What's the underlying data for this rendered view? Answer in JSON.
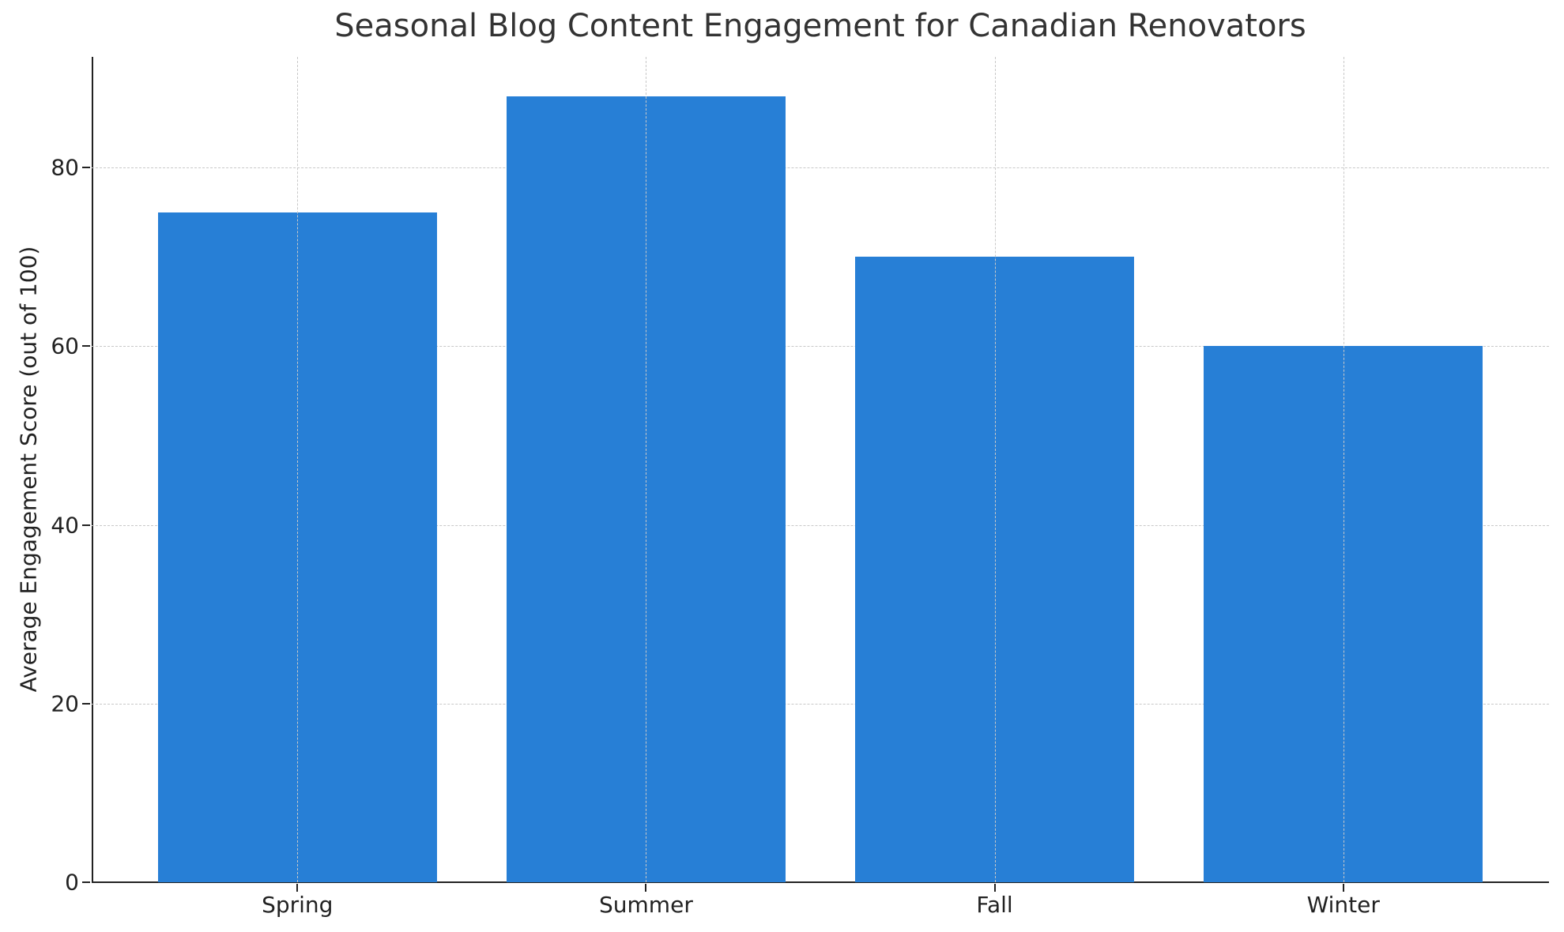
{
  "chart_data": {
    "type": "bar",
    "title": "Seasonal Blog Content Engagement for Canadian Renovators",
    "xlabel": "",
    "ylabel": "Average Engagement Score (out of 100)",
    "categories": [
      "Spring",
      "Summer",
      "Fall",
      "Winter"
    ],
    "values": [
      75,
      88,
      70,
      60
    ],
    "ylim": [
      0,
      92.4
    ],
    "yticks": [
      0,
      20,
      40,
      60,
      80
    ],
    "grid": true,
    "legend": null,
    "bar_color": "#277fd6"
  }
}
